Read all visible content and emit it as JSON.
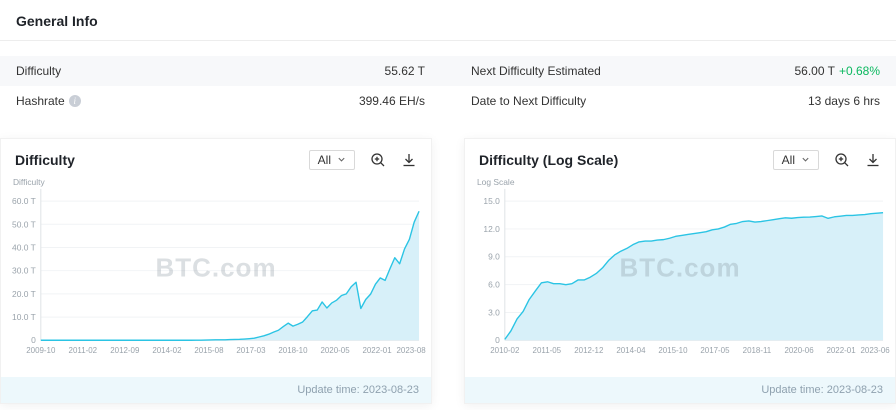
{
  "colors": {
    "accent_line": "#2bc4e4",
    "area_fill": "#d7f0f9",
    "positive_green": "#0bb85f",
    "row_stripe": "#f7f8fa",
    "axis_text": "#9aa3ab",
    "update_bar_bg": "#edf8fc"
  },
  "general_info": {
    "title": "General Info",
    "rows": [
      {
        "cells": [
          {
            "label": "Difficulty",
            "value": "55.62 T"
          },
          {
            "label": "Next Difficulty Estimated",
            "value": "56.00 T",
            "extra": "+0.68%"
          }
        ]
      },
      {
        "cells": [
          {
            "label": "Hashrate",
            "value": "399.46 EH/s"
          },
          {
            "label": "Date to Next Difficulty",
            "value": "13 days 6 hrs"
          }
        ]
      }
    ]
  },
  "chart_data": [
    {
      "type": "area",
      "title": "Difficulty",
      "range_selector": "All",
      "ylabel": "Difficulty",
      "ylim": [
        0,
        64
      ],
      "y_tick_values": [
        0,
        10,
        20,
        30,
        40,
        50,
        60
      ],
      "y_tick_labels": [
        "0",
        "10.0 T",
        "20.0 T",
        "30.0 T",
        "40.0 T",
        "50.0 T",
        "60.0 T"
      ],
      "x_ticks": [
        "2009-10",
        "2011-02",
        "2012-09",
        "2014-02",
        "2015-08",
        "2017-03",
        "2018-10",
        "2020-05",
        "2022-01",
        "2023-08"
      ],
      "values": [
        0,
        0,
        0,
        0,
        0,
        0,
        0,
        0,
        0,
        0,
        0,
        0,
        0,
        0,
        0,
        0,
        0,
        0,
        0,
        0,
        0,
        0,
        0,
        0,
        0,
        0,
        0,
        0,
        0,
        0,
        0,
        0.02,
        0.04,
        0.06,
        0.08,
        0.12,
        0.15,
        0.18,
        0.22,
        0.28,
        0.35,
        0.4,
        0.5,
        0.7,
        0.9,
        1.4,
        1.9,
        2.6,
        3.5,
        4.3,
        5.9,
        7.4,
        6.1,
        6.9,
        7.9,
        10.2,
        12.7,
        13.0,
        16.5,
        13.9,
        16.1,
        17.3,
        19.3,
        20.0,
        23.1,
        25.0,
        13.7,
        17.6,
        19.9,
        24.2,
        26.9,
        25.8,
        30.9,
        35.6,
        33.0,
        39.4,
        43.5,
        50.9,
        55.62
      ],
      "unit": "T",
      "grid": true,
      "legend": "none",
      "update_time": "Update time: 2023-08-23",
      "watermark": "BTC.com"
    },
    {
      "type": "area",
      "title": "Difficulty (Log Scale)",
      "range_selector": "All",
      "ylabel": "Log Scale",
      "ylim": [
        0,
        16
      ],
      "y_tick_values": [
        0,
        3,
        6,
        9,
        12,
        15
      ],
      "y_tick_labels": [
        "0",
        "3.0",
        "6.0",
        "9.0",
        "12.0",
        "15.0"
      ],
      "x_ticks": [
        "2010-02",
        "2011-05",
        "2012-12",
        "2014-04",
        "2015-10",
        "2017-05",
        "2018-11",
        "2020-06",
        "2022-01",
        "2023-06"
      ],
      "values": [
        0.1,
        1.0,
        2.3,
        3.1,
        4.4,
        5.3,
        6.2,
        6.3,
        6.1,
        6.1,
        6.0,
        6.1,
        6.5,
        6.5,
        6.8,
        7.2,
        7.8,
        8.6,
        9.2,
        9.6,
        9.9,
        10.3,
        10.6,
        10.7,
        10.7,
        10.8,
        10.85,
        11.0,
        11.2,
        11.3,
        11.4,
        11.5,
        11.6,
        11.7,
        11.9,
        12.0,
        12.2,
        12.5,
        12.6,
        12.8,
        12.86,
        12.75,
        12.8,
        12.9,
        13.0,
        13.1,
        13.2,
        13.15,
        13.23,
        13.27,
        13.28,
        13.33,
        13.4,
        13.14,
        13.3,
        13.38,
        13.46,
        13.46,
        13.52,
        13.55,
        13.64,
        13.7,
        13.75
      ],
      "unit": "log10",
      "grid": true,
      "legend": "none",
      "update_time": "Update time: 2023-08-23",
      "watermark": "BTC.com"
    }
  ]
}
